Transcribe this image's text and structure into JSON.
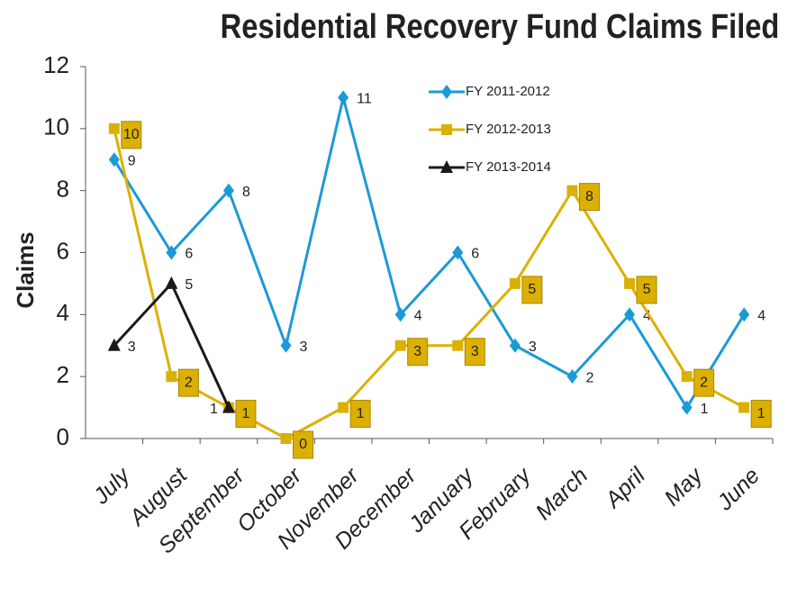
{
  "chart_data": {
    "type": "line",
    "title": "Residential Recovery Fund Claims Filed",
    "y_label": "Claims",
    "categories": [
      "July",
      "August",
      "September",
      "October",
      "November",
      "December",
      "January",
      "February",
      "March",
      "April",
      "May",
      "June"
    ],
    "series": [
      {
        "name": "FY 2011-2012",
        "color": "#1b9ad6",
        "marker": "diamond",
        "values": [
          9,
          6,
          8,
          3,
          11,
          4,
          6,
          3,
          2,
          4,
          1,
          4
        ]
      },
      {
        "name": "FY 2012-2013",
        "color": "#dcb000",
        "marker": "square",
        "values": [
          10,
          2,
          1,
          0,
          1,
          3,
          3,
          5,
          8,
          5,
          2,
          1
        ]
      },
      {
        "name": "FY 2013-2014",
        "color": "#1a1a1a",
        "marker": "triangle",
        "values": [
          3,
          5,
          1,
          null,
          null,
          null,
          null,
          null,
          null,
          null,
          null,
          null
        ]
      }
    ],
    "ylim": [
      0,
      12
    ],
    "yticks": [
      0,
      2,
      4,
      6,
      8,
      10,
      12
    ]
  }
}
